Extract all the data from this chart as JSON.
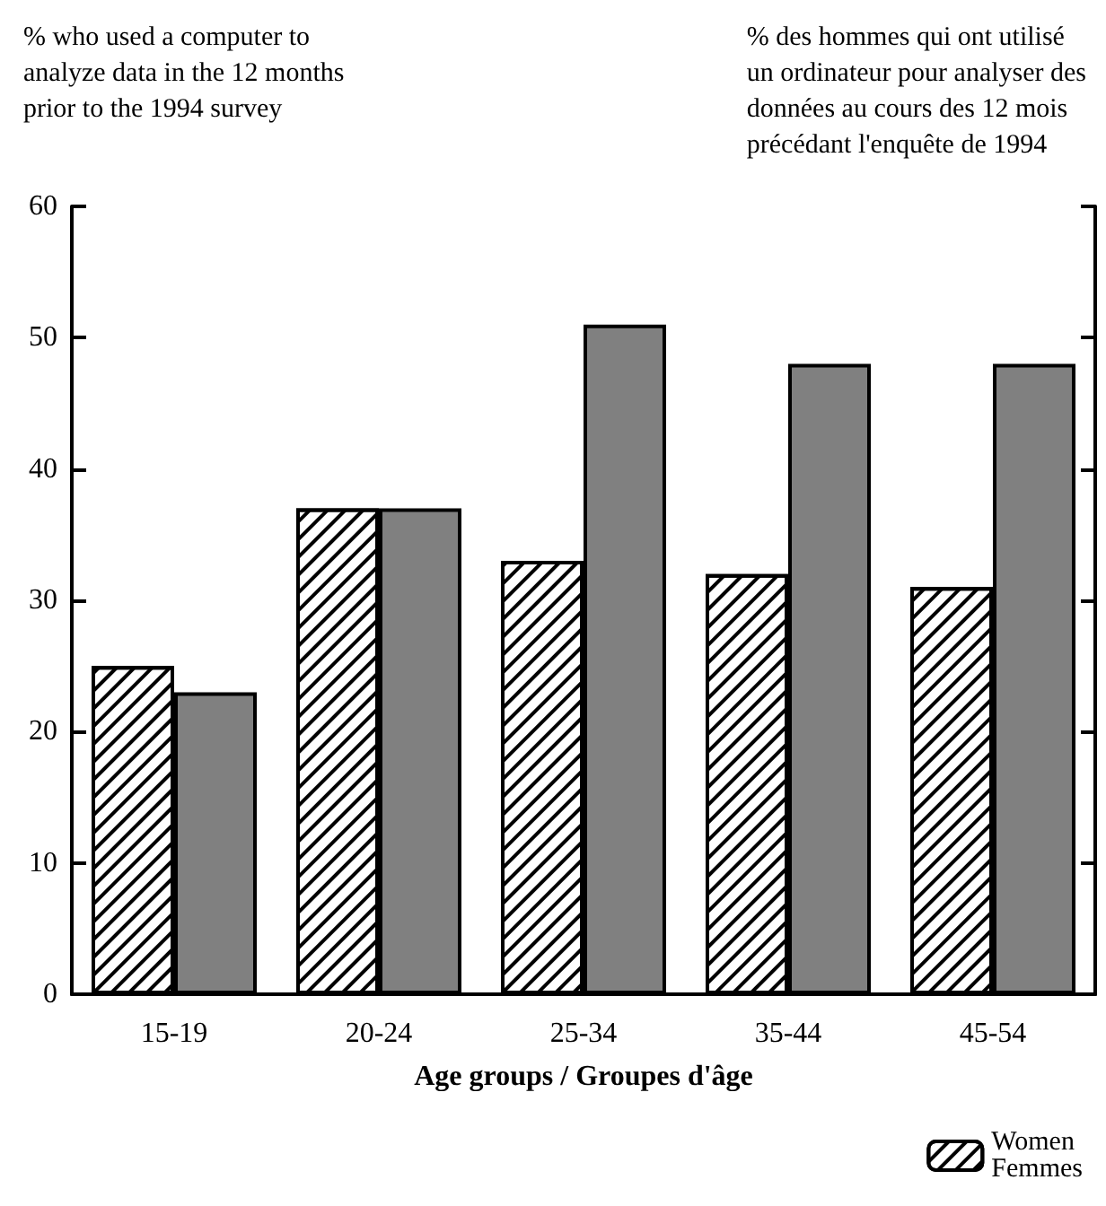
{
  "chart_data": {
    "type": "bar",
    "title": "% who used a computer to\nanalyze data in the 12 months\nprior to the 1994 survey",
    "subtitle": "% des hommes qui ont utilisé\nun ordinateur pour analyser des\ndonnées au cours des 12 mois\nprécédant l'enquête de 1994",
    "xlabel": "Age groups / Groupes d'âge",
    "categories": [
      "15-19",
      "20-24",
      "25-34",
      "35-44",
      "45-54"
    ],
    "series": [
      {
        "name": "Women\nFemmes",
        "color": "#ffffff",
        "values": [
          25,
          37,
          33,
          32,
          31
        ]
      },
      {
        "color": "#808080",
        "values": [
          23,
          37,
          51,
          48,
          48
        ]
      }
    ],
    "ylim": [
      0,
      60
    ],
    "yticks": [
      0,
      10,
      20,
      30,
      40,
      50,
      60
    ],
    "grid": false,
    "legend": "bottom right"
  }
}
